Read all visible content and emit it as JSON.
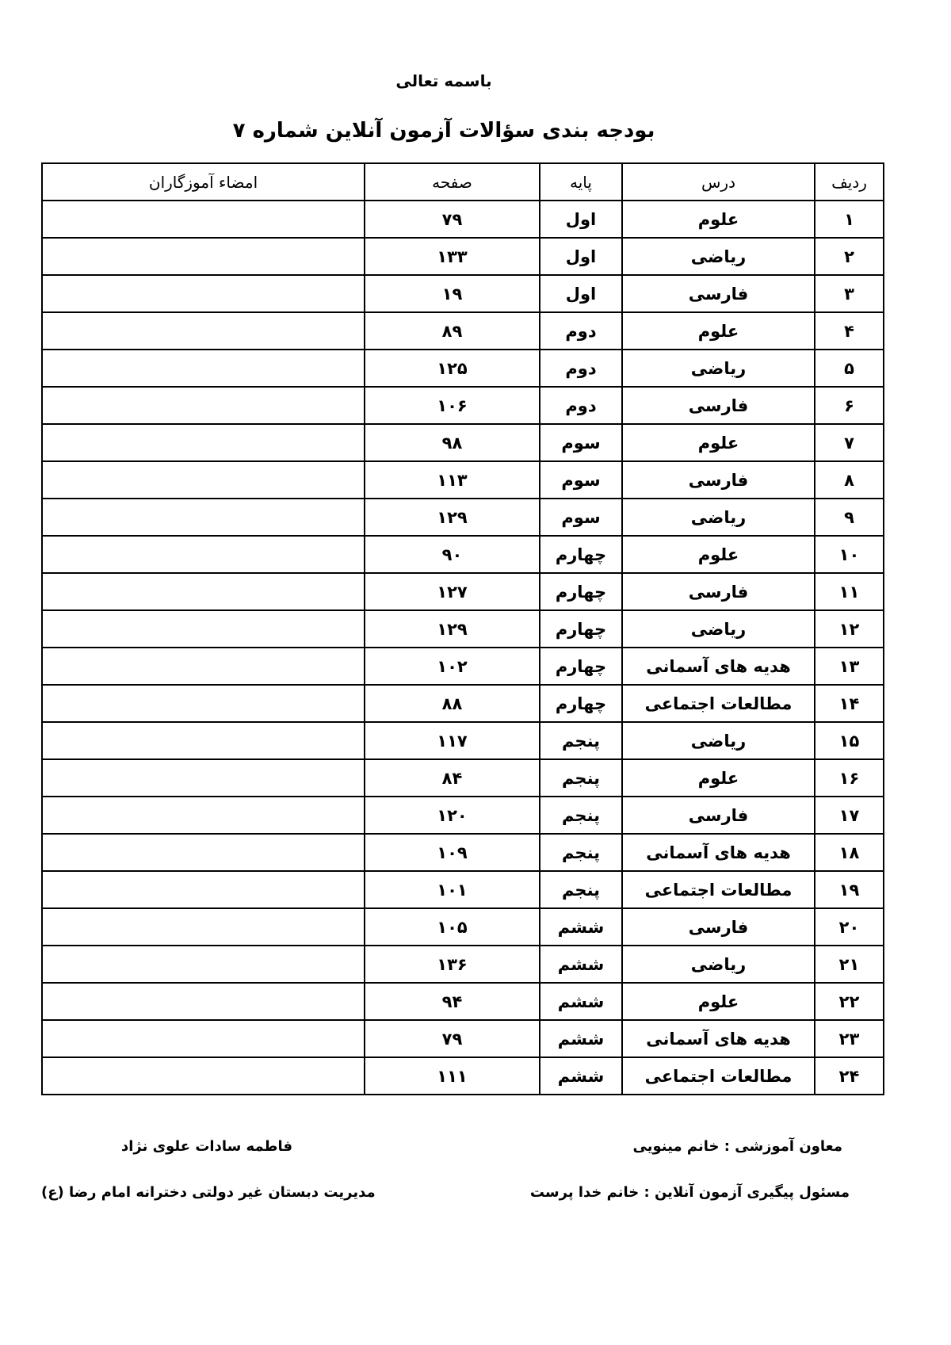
{
  "header": {
    "invocation": "باسمه تعالی",
    "title": "بودجه بندی سؤالات آزمون آنلاین شماره ۷"
  },
  "table": {
    "columns": [
      "ردیف",
      "درس",
      "پایه",
      "صفحه",
      "امضاء آموزگاران"
    ],
    "rows": [
      [
        "۱",
        "علوم",
        "اول",
        "۷۹",
        ""
      ],
      [
        "۲",
        "ریاضی",
        "اول",
        "۱۳۳",
        ""
      ],
      [
        "۳",
        "فارسی",
        "اول",
        "۱۹",
        ""
      ],
      [
        "۴",
        "علوم",
        "دوم",
        "۸۹",
        ""
      ],
      [
        "۵",
        "ریاضی",
        "دوم",
        "۱۲۵",
        ""
      ],
      [
        "۶",
        "فارسی",
        "دوم",
        "۱۰۶",
        ""
      ],
      [
        "۷",
        "علوم",
        "سوم",
        "۹۸",
        ""
      ],
      [
        "۸",
        "فارسی",
        "سوم",
        "۱۱۳",
        ""
      ],
      [
        "۹",
        "ریاضی",
        "سوم",
        "۱۲۹",
        ""
      ],
      [
        "۱۰",
        "علوم",
        "چهارم",
        "۹۰",
        ""
      ],
      [
        "۱۱",
        "فارسی",
        "چهارم",
        "۱۲۷",
        ""
      ],
      [
        "۱۲",
        "ریاضی",
        "چهارم",
        "۱۲۹",
        ""
      ],
      [
        "۱۳",
        "هدیه های آسمانی",
        "چهارم",
        "۱۰۲",
        ""
      ],
      [
        "۱۴",
        "مطالعات اجتماعی",
        "چهارم",
        "۸۸",
        ""
      ],
      [
        "۱۵",
        "ریاضی",
        "پنجم",
        "۱۱۷",
        ""
      ],
      [
        "۱۶",
        "علوم",
        "پنجم",
        "۸۴",
        ""
      ],
      [
        "۱۷",
        "فارسی",
        "پنجم",
        "۱۲۰",
        ""
      ],
      [
        "۱۸",
        "هدیه های آسمانی",
        "پنجم",
        "۱۰۹",
        ""
      ],
      [
        "۱۹",
        "مطالعات اجتماعی",
        "پنجم",
        "۱۰۱",
        ""
      ],
      [
        "۲۰",
        "فارسی",
        "ششم",
        "۱۰۵",
        ""
      ],
      [
        "۲۱",
        "ریاضی",
        "ششم",
        "۱۳۶",
        ""
      ],
      [
        "۲۲",
        "علوم",
        "ششم",
        "۹۴",
        ""
      ],
      [
        "۲۳",
        "هدیه های آسمانی",
        "ششم",
        "۷۹",
        ""
      ],
      [
        "۲۴",
        "مطالعات اجتماعی",
        "ششم",
        "۱۱۱",
        ""
      ]
    ]
  },
  "footer": {
    "deputy": "معاون آموزشی : خانم مینویی",
    "coordinator": "مسئول پیگیری آزمون آنلاین : خانم خدا پرست",
    "principal_name": "فاطمه سادات علوی نژاد",
    "school": "مدیریت دبستان غیر دولتی دخترانه امام رضا (ع)"
  }
}
